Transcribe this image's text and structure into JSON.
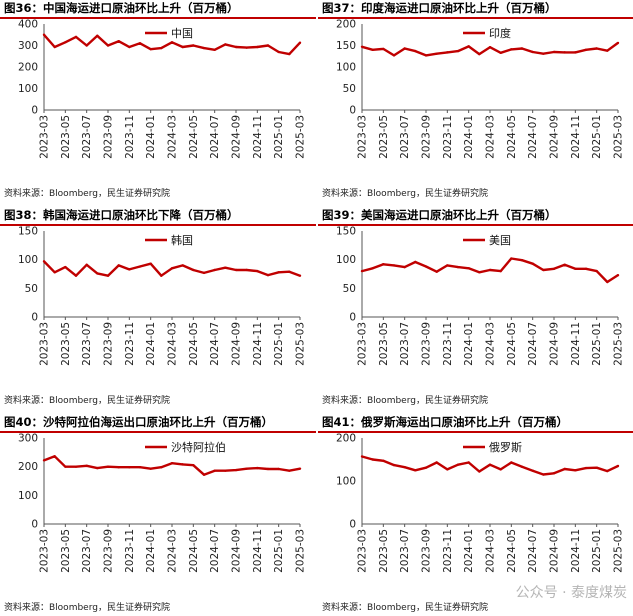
{
  "source_label": "资料来源：Bloomberg，民生证券研究院",
  "watermark": "公众号 · 泰度煤炭",
  "line_color": "#c00000",
  "chart_data": [
    {
      "type": "line",
      "title": "图36：中国海运进口原油环比上升（百万桶）",
      "legend": "中国",
      "x": [
        "2023-03",
        "2023-04",
        "2023-05",
        "2023-06",
        "2023-07",
        "2023-08",
        "2023-09",
        "2023-10",
        "2023-11",
        "2023-12",
        "2024-01",
        "2024-02",
        "2024-03",
        "2024-04",
        "2024-05",
        "2024-06",
        "2024-07",
        "2024-08",
        "2024-09",
        "2024-10",
        "2024-11",
        "2024-12",
        "2025-01",
        "2025-02",
        "2025-03"
      ],
      "x_ticks": [
        "2023-03",
        "2023-05",
        "2023-07",
        "2023-09",
        "2023-11",
        "2024-01",
        "2024-03",
        "2024-05",
        "2024-07",
        "2024-09",
        "2024-11",
        "2025-01",
        "2025-03"
      ],
      "values": [
        350,
        293,
        315,
        340,
        300,
        345,
        300,
        320,
        293,
        310,
        283,
        288,
        315,
        293,
        300,
        288,
        280,
        305,
        293,
        290,
        293,
        300,
        270,
        260,
        313
      ],
      "ylim": [
        0,
        400
      ],
      "yticks": [
        0,
        100,
        200,
        300,
        400
      ]
    },
    {
      "type": "line",
      "title": "图37：印度海运进口原油环比上升（百万桶）",
      "legend": "印度",
      "x": [
        "2023-03",
        "2023-04",
        "2023-05",
        "2023-06",
        "2023-07",
        "2023-08",
        "2023-09",
        "2023-10",
        "2023-11",
        "2023-12",
        "2024-01",
        "2024-02",
        "2024-03",
        "2024-04",
        "2024-05",
        "2024-06",
        "2024-07",
        "2024-08",
        "2024-09",
        "2024-10",
        "2024-11",
        "2024-12",
        "2025-01",
        "2025-02",
        "2025-03"
      ],
      "x_ticks": [
        "2023-03",
        "2023-05",
        "2023-07",
        "2023-09",
        "2023-11",
        "2024-01",
        "2024-03",
        "2024-05",
        "2024-07",
        "2024-09",
        "2024-11",
        "2025-01",
        "2025-03"
      ],
      "values": [
        147,
        140,
        142,
        127,
        143,
        137,
        127,
        131,
        134,
        137,
        148,
        130,
        146,
        133,
        141,
        143,
        135,
        131,
        135,
        134,
        134,
        140,
        143,
        138,
        156
      ],
      "ylim": [
        0,
        200
      ],
      "yticks": [
        0,
        50,
        100,
        150,
        200
      ]
    },
    {
      "type": "line",
      "title": "图38：韩国海运进口原油环比下降（百万桶）",
      "legend": "韩国",
      "x": [
        "2023-03",
        "2023-04",
        "2023-05",
        "2023-06",
        "2023-07",
        "2023-08",
        "2023-09",
        "2023-10",
        "2023-11",
        "2023-12",
        "2024-01",
        "2024-02",
        "2024-03",
        "2024-04",
        "2024-05",
        "2024-06",
        "2024-07",
        "2024-08",
        "2024-09",
        "2024-10",
        "2024-11",
        "2024-12",
        "2025-01",
        "2025-02",
        "2025-03"
      ],
      "x_ticks": [
        "2023-03",
        "2023-05",
        "2023-07",
        "2023-09",
        "2023-11",
        "2024-01",
        "2024-03",
        "2024-05",
        "2024-07",
        "2024-09",
        "2024-11",
        "2025-01",
        "2025-03"
      ],
      "values": [
        97,
        78,
        87,
        72,
        91,
        76,
        72,
        90,
        83,
        88,
        93,
        72,
        85,
        90,
        82,
        77,
        82,
        86,
        82,
        82,
        80,
        73,
        78,
        79,
        72
      ],
      "ylim": [
        0,
        150
      ],
      "yticks": [
        0,
        50,
        100,
        150
      ]
    },
    {
      "type": "line",
      "title": "图39：美国海运进口原油环比上升（百万桶）",
      "legend": "美国",
      "x": [
        "2023-03",
        "2023-04",
        "2023-05",
        "2023-06",
        "2023-07",
        "2023-08",
        "2023-09",
        "2023-10",
        "2023-11",
        "2023-12",
        "2024-01",
        "2024-02",
        "2024-03",
        "2024-04",
        "2024-05",
        "2024-06",
        "2024-07",
        "2024-08",
        "2024-09",
        "2024-10",
        "2024-11",
        "2024-12",
        "2025-01",
        "2025-02",
        "2025-03"
      ],
      "x_ticks": [
        "2023-03",
        "2023-05",
        "2023-07",
        "2023-09",
        "2023-11",
        "2024-01",
        "2024-03",
        "2024-05",
        "2024-07",
        "2024-09",
        "2024-11",
        "2025-01",
        "2025-03"
      ],
      "values": [
        80,
        85,
        92,
        90,
        87,
        96,
        88,
        79,
        90,
        87,
        85,
        78,
        82,
        80,
        102,
        99,
        93,
        82,
        84,
        91,
        84,
        84,
        80,
        61,
        73
      ],
      "ylim": [
        0,
        150
      ],
      "yticks": [
        0,
        50,
        100,
        150
      ]
    },
    {
      "type": "line",
      "title": "图40：沙特阿拉伯海运出口原油环比上升（百万桶）",
      "legend": "沙特阿拉伯",
      "x": [
        "2023-03",
        "2023-04",
        "2023-05",
        "2023-06",
        "2023-07",
        "2023-08",
        "2023-09",
        "2023-10",
        "2023-11",
        "2023-12",
        "2024-01",
        "2024-02",
        "2024-03",
        "2024-04",
        "2024-05",
        "2024-06",
        "2024-07",
        "2024-08",
        "2024-09",
        "2024-10",
        "2024-11",
        "2024-12",
        "2025-01",
        "2025-02",
        "2025-03"
      ],
      "x_ticks": [
        "2023-03",
        "2023-05",
        "2023-07",
        "2023-09",
        "2023-11",
        "2024-01",
        "2024-03",
        "2024-05",
        "2024-07",
        "2024-09",
        "2024-11",
        "2025-01",
        "2025-03"
      ],
      "values": [
        222,
        236,
        200,
        200,
        203,
        195,
        200,
        198,
        198,
        198,
        193,
        198,
        212,
        208,
        205,
        172,
        186,
        186,
        188,
        193,
        195,
        192,
        192,
        186,
        193
      ],
      "ylim": [
        0,
        300
      ],
      "yticks": [
        0,
        100,
        200,
        300
      ]
    },
    {
      "type": "line",
      "title": "图41：俄罗斯海运出口原油环比上升（百万桶）",
      "legend": "俄罗斯",
      "x": [
        "2023-03",
        "2023-04",
        "2023-05",
        "2023-06",
        "2023-07",
        "2023-08",
        "2023-09",
        "2023-10",
        "2023-11",
        "2023-12",
        "2024-01",
        "2024-02",
        "2024-03",
        "2024-04",
        "2024-05",
        "2024-06",
        "2024-07",
        "2024-08",
        "2024-09",
        "2024-10",
        "2024-11",
        "2024-12",
        "2025-01",
        "2025-02",
        "2025-03"
      ],
      "x_ticks": [
        "2023-03",
        "2023-05",
        "2023-07",
        "2023-09",
        "2023-11",
        "2024-01",
        "2024-03",
        "2024-05",
        "2024-07",
        "2024-09",
        "2024-11",
        "2025-01",
        "2025-03"
      ],
      "values": [
        157,
        150,
        147,
        137,
        132,
        125,
        131,
        143,
        127,
        138,
        143,
        122,
        138,
        127,
        143,
        133,
        124,
        115,
        118,
        128,
        125,
        130,
        131,
        123,
        135
      ],
      "ylim": [
        0,
        200
      ],
      "yticks": [
        0,
        100,
        200
      ]
    }
  ]
}
